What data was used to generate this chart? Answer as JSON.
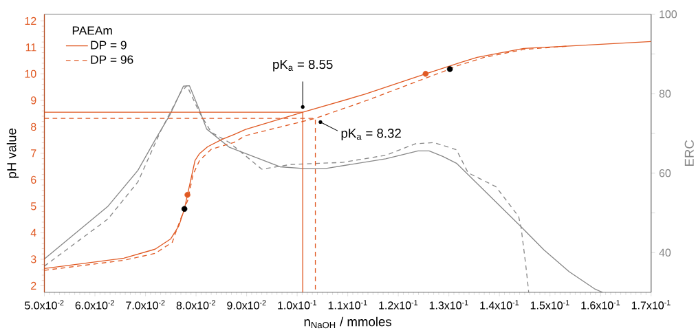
{
  "chart_data": {
    "type": "line",
    "xlabel": "n$_{NaOH}$ / mmoles",
    "ylabel": "pH value",
    "y2label": "ERC",
    "legend_title": "PAEAm",
    "legend": "top left",
    "xlim": [
      0.05,
      0.17
    ],
    "xticks": [
      {
        "value": 0.05,
        "label": "5.0x10$^{-2}$"
      },
      {
        "value": 0.06,
        "label": "6.0x10$^{-2}$"
      },
      {
        "value": 0.07,
        "label": "7.0x10$^{-2}$"
      },
      {
        "value": 0.08,
        "label": "8.0x10$^{-2}$"
      },
      {
        "value": 0.09,
        "label": "9.0x10$^{-2}$"
      },
      {
        "value": 0.1,
        "label": "1.0x10$^{-1}$"
      },
      {
        "value": 0.11,
        "label": "1.1x10$^{-1}$"
      },
      {
        "value": 0.12,
        "label": "1.2x10$^{-1}$"
      },
      {
        "value": 0.13,
        "label": "1.3x10$^{-1}$"
      },
      {
        "value": 0.14,
        "label": "1.4x10$^{-1}$"
      },
      {
        "value": 0.15,
        "label": "1.5x10$^{-1}$"
      },
      {
        "value": 0.16,
        "label": "1.6x10$^{-1}$"
      },
      {
        "value": 0.17,
        "label": "1.7x10$^{-1}$"
      }
    ],
    "ylim": [
      1.75,
      12.25
    ],
    "yticks": [
      2,
      3,
      4,
      5,
      6,
      7,
      8,
      9,
      10,
      11,
      12
    ],
    "y2lim": [
      30,
      100
    ],
    "y2ticks": [
      40,
      {
        "value": 50,
        "label": null
      },
      60,
      {
        "value": 70,
        "label": null
      },
      80,
      {
        "value": 90,
        "label": null
      },
      100
    ],
    "series": [
      {
        "name": "DP = 9",
        "color": "#e05a24",
        "line_style": "solid",
        "x": [
          0.05,
          0.0657,
          0.0719,
          0.075,
          0.0766,
          0.0777,
          0.0783,
          0.0789,
          0.0798,
          0.0807,
          0.0823,
          0.0852,
          0.0875,
          0.0898,
          0.1011,
          0.1134,
          0.1254,
          0.1325,
          0.1356,
          0.1448,
          0.1539,
          0.17
        ],
        "values": [
          2.65,
          3.04,
          3.38,
          3.77,
          4.26,
          4.9,
          5.43,
          5.95,
          6.73,
          6.99,
          7.25,
          7.53,
          7.71,
          7.9,
          8.55,
          9.23,
          10.0,
          10.44,
          10.62,
          10.96,
          11.05,
          11.22
        ]
      },
      {
        "name": "DP = 96",
        "color": "#e05a24",
        "line_style": "dashed",
        "x": [
          0.05,
          0.0657,
          0.0719,
          0.0753,
          0.0762,
          0.0777,
          0.0784,
          0.0794,
          0.0807,
          0.083,
          0.0875,
          0.0898,
          0.1036,
          0.1134,
          0.1302,
          0.1311,
          0.137,
          0.1448,
          0.1539
        ],
        "values": [
          2.58,
          2.96,
          3.22,
          3.64,
          4.13,
          4.9,
          5.25,
          6.2,
          6.73,
          7.15,
          7.41,
          7.67,
          8.32,
          8.97,
          10.18,
          10.27,
          10.62,
          10.92,
          11.05
        ]
      },
      {
        "axis": "y2",
        "color": "#888888",
        "line_style": "solid",
        "x": [
          0.05,
          0.0626,
          0.0685,
          0.0721,
          0.0748,
          0.0775,
          0.0787,
          0.0807,
          0.0821,
          0.0866,
          0.0966,
          0.1011,
          0.1057,
          0.1175,
          0.1239,
          0.1261,
          0.1288,
          0.1315,
          0.134,
          0.1443,
          0.1488,
          0.1538,
          0.1588,
          0.1604
        ],
        "values": [
          38.4,
          51.7,
          60.7,
          68.8,
          74.6,
          81.9,
          82.0,
          75.8,
          71.1,
          66.5,
          61.6,
          61.2,
          61.2,
          63.6,
          65.6,
          65.6,
          64.2,
          62.5,
          59.4,
          46.5,
          40.7,
          35.2,
          30.9,
          30
        ]
      },
      {
        "axis": "y2",
        "color": "#888888",
        "line_style": "dashed",
        "x": [
          0.05,
          0.0626,
          0.0685,
          0.073,
          0.077,
          0.0782,
          0.0807,
          0.083,
          0.0866,
          0.093,
          0.0988,
          0.1089,
          0.1175,
          0.1234,
          0.127,
          0.1315,
          0.1338,
          0.1393,
          0.1438,
          0.1443,
          0.1452,
          0.1458
        ],
        "values": [
          36.6,
          48.5,
          57.8,
          70.6,
          80.4,
          82.0,
          75.2,
          70.3,
          67.7,
          61.0,
          62.2,
          62.7,
          64.5,
          67.4,
          67.7,
          65.9,
          60.1,
          56.6,
          49.1,
          46.2,
          37.0,
          30
        ]
      },
      {
        "color": "#e05a24",
        "line_style": "solid",
        "x": [
          0.05,
          0.1011,
          0.1011
        ],
        "values": [
          8.55,
          8.55,
          1.75
        ]
      },
      {
        "color": "#e05a24",
        "line_style": "dashed",
        "x": [
          0.05,
          0.1036,
          0.1036
        ],
        "values": [
          8.32,
          8.32,
          1.75
        ]
      },
      {
        "type": "scatter",
        "color": "#e05a24",
        "x": [
          0.0783,
          0.1254
        ],
        "values": [
          5.43,
          10.0
        ]
      },
      {
        "type": "scatter",
        "color": "#000000",
        "x": [
          0.0777,
          0.1302
        ],
        "values": [
          4.9,
          10.18
        ]
      }
    ],
    "annotations": [
      {
        "text": "pK$_{a}$ = 8.55",
        "x": 0.1011,
        "y": 8.55
      },
      {
        "text": "pK$_{a}$ = 8.32",
        "x": 0.1036,
        "y": 8.32
      }
    ]
  }
}
